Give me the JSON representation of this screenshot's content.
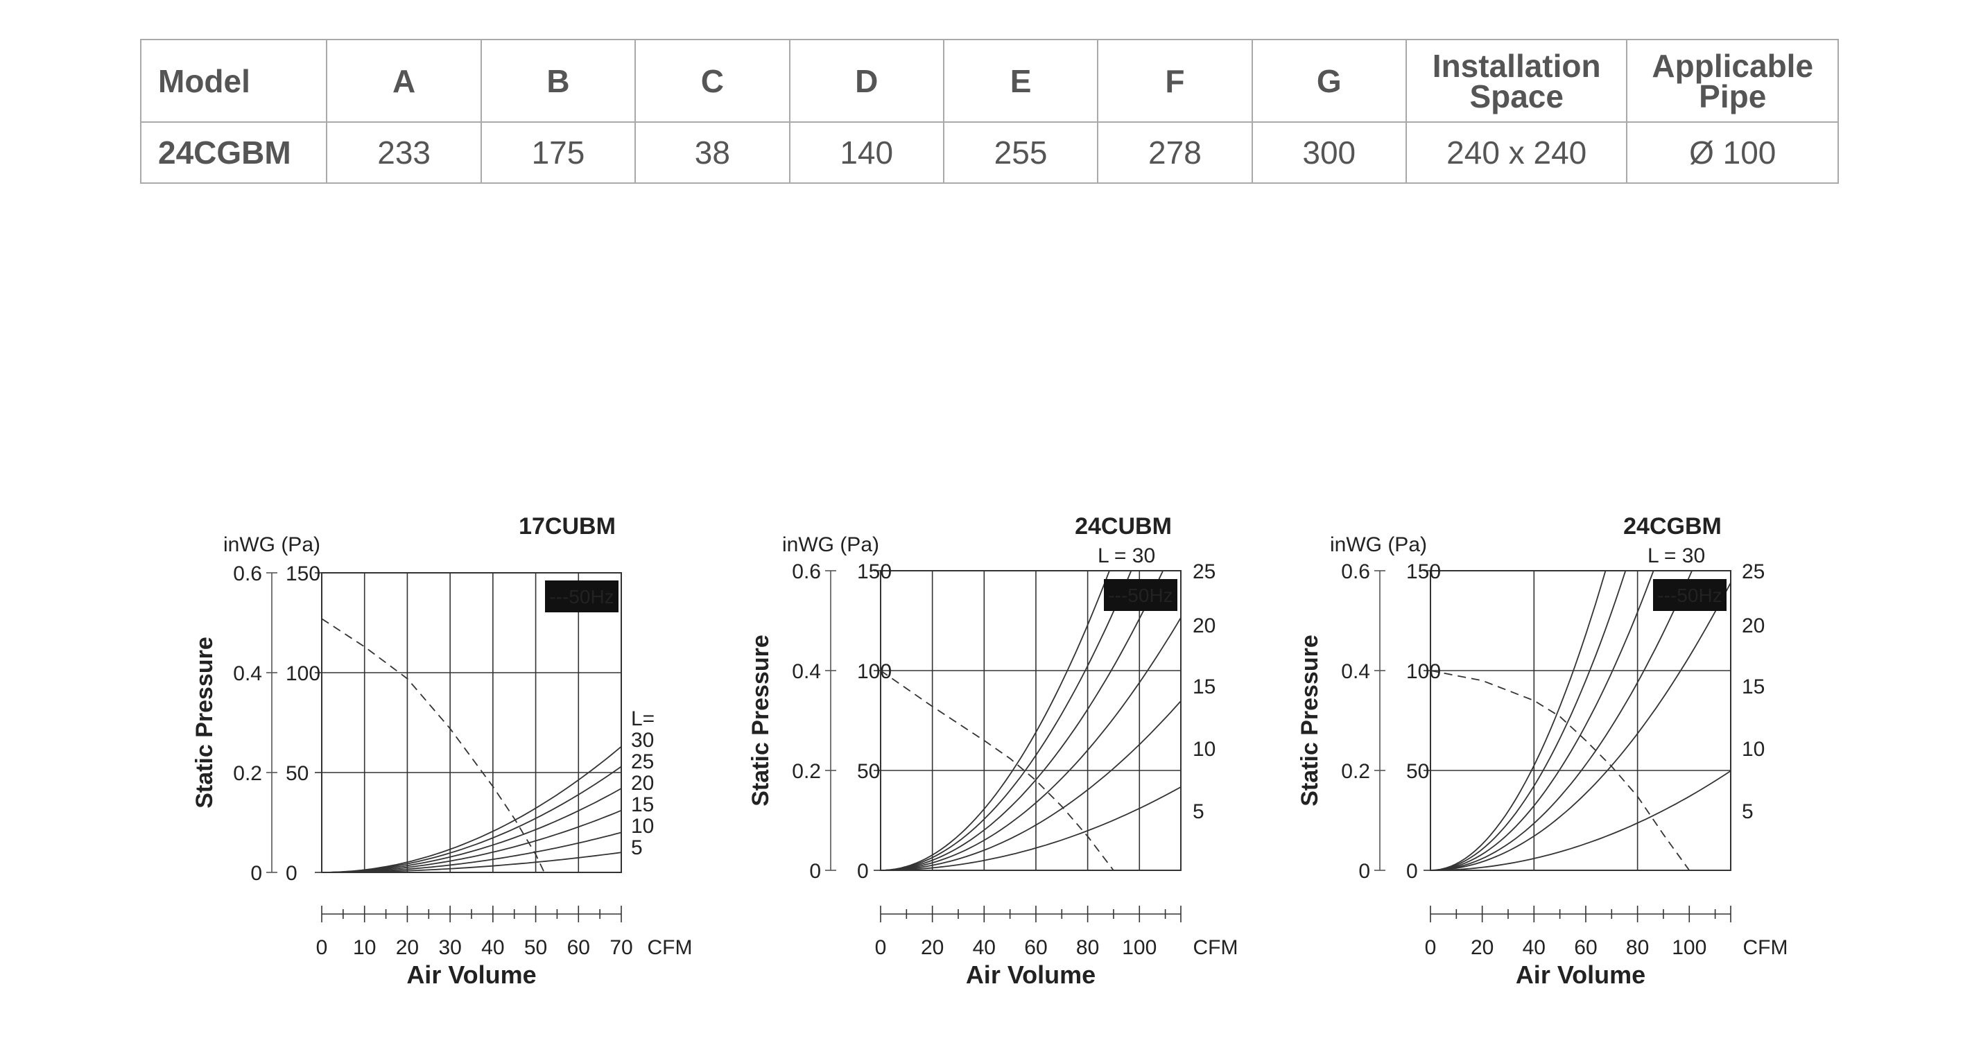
{
  "table": {
    "headers": [
      "Model",
      "A",
      "B",
      "C",
      "D",
      "E",
      "F",
      "G",
      "Installation Space",
      "Applicable Pipe"
    ],
    "header_lines": {
      "installation": [
        "Installation",
        "Space"
      ],
      "pipe": [
        "Applicable",
        "Pipe"
      ]
    },
    "row": [
      "24CGBM",
      "233",
      "175",
      "38",
      "140",
      "255",
      "278",
      "300",
      "240 x 240",
      "Ø 100"
    ]
  },
  "chart_data": [
    {
      "type": "line",
      "title": "17CUBM",
      "frequency_badge": "---50Hz",
      "xlabel": "Air Volume",
      "x_unit": "CFM",
      "ylabel": "Static Pressure",
      "y_unit_label": "inWG (Pa)",
      "xlim": [
        0,
        70
      ],
      "ylim_pa": [
        0,
        150
      ],
      "x_ticks": [
        0,
        10,
        20,
        30,
        40,
        50,
        60,
        70
      ],
      "y_ticks_pa": [
        0,
        50,
        100,
        150
      ],
      "y_ticks_inwg": [
        "0",
        "0.2",
        "0.4",
        "0.6"
      ],
      "fan_curve": {
        "x": [
          0,
          10,
          20,
          30,
          40,
          45,
          50,
          52
        ],
        "y": [
          127,
          113,
          97,
          72,
          43,
          27,
          9,
          0
        ]
      },
      "curve_prefix": "L=",
      "system_curves": [
        {
          "label": "30",
          "end_y": 63
        },
        {
          "label": "25",
          "end_y": 53
        },
        {
          "label": "20",
          "end_y": 42
        },
        {
          "label": "15",
          "end_y": 31
        },
        {
          "label": "10",
          "end_y": 20
        },
        {
          "label": "5",
          "end_y": 10
        }
      ],
      "grid": true
    },
    {
      "type": "line",
      "title": "24CUBM",
      "frequency_badge": "---50Hz",
      "xlabel": "Air Volume",
      "x_unit": "CFM",
      "ylabel": "Static Pressure",
      "y_unit_label": "inWG (Pa)",
      "xlim": [
        0,
        116
      ],
      "ylim_pa": [
        0,
        150
      ],
      "x_ticks": [
        0,
        20,
        40,
        60,
        80,
        100
      ],
      "y_ticks_pa": [
        0,
        50,
        100,
        150
      ],
      "y_ticks_inwg": [
        "0",
        "0.2",
        "0.4",
        "0.6"
      ],
      "fan_curve": {
        "x": [
          0,
          20,
          40,
          50,
          60,
          70,
          80,
          90
        ],
        "y": [
          100,
          82,
          65,
          56,
          45,
          32,
          17,
          0
        ]
      },
      "system_curves": [
        {
          "label": "L = 30",
          "k": 0.0192
        },
        {
          "label": "25",
          "k": 0.016
        },
        {
          "label": "20",
          "k": 0.0126
        },
        {
          "label": "15",
          "k": 0.0094
        },
        {
          "label": "10",
          "k": 0.0063
        },
        {
          "label": "5",
          "k": 0.0031
        }
      ],
      "grid": true
    },
    {
      "type": "line",
      "title": "24CGBM",
      "frequency_badge": "---50Hz",
      "xlabel": "Air Volume",
      "x_unit": "CFM",
      "ylabel": "Static Pressure",
      "y_unit_label": "inWG (Pa)",
      "xlim": [
        0,
        116
      ],
      "ylim_pa": [
        0,
        150
      ],
      "x_ticks": [
        0,
        20,
        40,
        60,
        80,
        100
      ],
      "y_ticks_pa": [
        0,
        50,
        100,
        150
      ],
      "y_ticks_inwg": [
        "0",
        "0.2",
        "0.4",
        "0.6"
      ],
      "fan_curve": {
        "x": [
          0,
          20,
          40,
          50,
          60,
          70,
          80,
          90,
          100
        ],
        "y": [
          100,
          95,
          85,
          77,
          65,
          52,
          37,
          18,
          0
        ]
      },
      "system_curves": [
        {
          "label": "L = 30",
          "k": 0.0328
        },
        {
          "label": "25",
          "k": 0.0264
        },
        {
          "label": "20",
          "k": 0.0202
        },
        {
          "label": "15",
          "k": 0.0147
        },
        {
          "label": "10",
          "k": 0.0107
        },
        {
          "label": "5",
          "k": 0.0037
        }
      ],
      "grid": true
    }
  ]
}
